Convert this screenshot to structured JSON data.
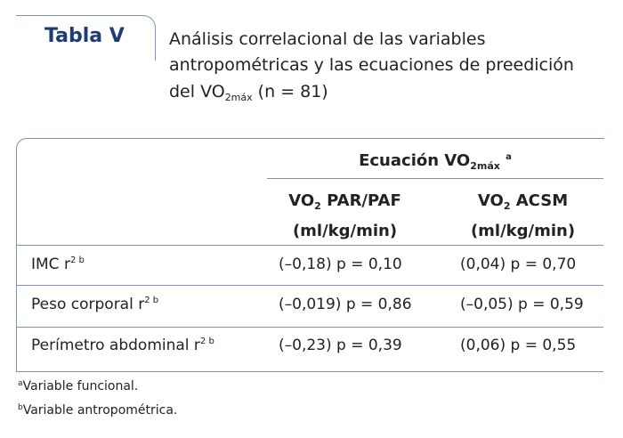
{
  "header": {
    "label": "Tabla V",
    "caption": {
      "line1": "Análisis correlacional de las variables",
      "line2": "antropométricas y las ecuaciones de preedición",
      "line3_before": "del VO",
      "line3_sub": "2máx",
      "line3_after": "(n = 81)"
    }
  },
  "table": {
    "group_header": {
      "text": "Ecuación VO",
      "sub": "2máx",
      "sup": "a"
    },
    "columns": [
      {
        "text": "VO",
        "sub": "2",
        "after": "PAR/PAF",
        "unit": "(ml/kg/min)"
      },
      {
        "text": "VO",
        "sub": "2",
        "after": "ACSM",
        "unit": "(ml/kg/min)"
      }
    ],
    "rows": [
      {
        "label": "IMC r",
        "sup": "2 b",
        "cells": [
          "(–0,18) p = 0,10",
          "(0,04) p = 0,70"
        ]
      },
      {
        "label": "Peso corporal r",
        "sup": "2 b",
        "cells": [
          "(–0,019) p = 0,86",
          "(–0,05) p = 0,59"
        ]
      },
      {
        "label": "Perímetro abdominal r",
        "sup": "2 b",
        "cells": [
          "(–0,23) p = 0,39",
          "(0,06) p = 0,55"
        ]
      }
    ]
  },
  "footnotes": [
    {
      "mark": "a",
      "text": "Variable funcional."
    },
    {
      "mark": "b",
      "text": "Variable antropométrica."
    }
  ]
}
